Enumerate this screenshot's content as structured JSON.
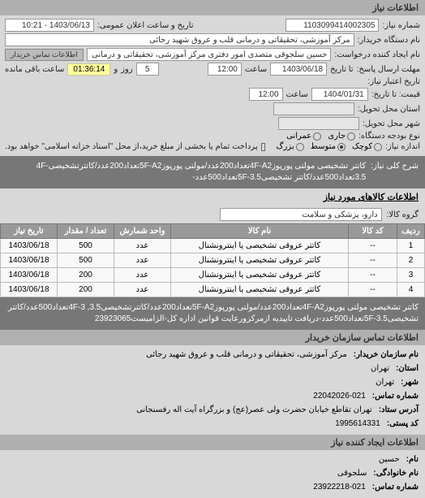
{
  "sections": {
    "info_header": "اطلاعات نیاز",
    "goods_header": "اطلاعات کالاهای مورد نیاز",
    "buyer_header": "اطلاعات تماس سازمان خریدار",
    "creator_header": "اطلاعات ایجاد کننده نیاز"
  },
  "labels": {
    "request_number": "شماره نیاز:",
    "announce_datetime": "تاریخ و ساعت اعلان عمومی:",
    "buyer_name": "نام دستگاه خریدار:",
    "requester_name": "نام ایجاد کننده درخواست:",
    "buyer_contact_btn": "اطلاعات تماس خریدار",
    "response_deadline": "مهلت ارسال پاسخ:",
    "until_date": "تا تاریخ",
    "hour": "ساعت",
    "valid_days": "روز",
    "and": "و",
    "time_remaining": "ساعت باقی مانده",
    "validity_date": "تاریخ اعتبار نیاز:",
    "price_until": "قیمت: تا تاریخ:",
    "delivery_province": "استان محل تحویل:",
    "delivery_city": "شهر محل تحویل:",
    "budget_type": "نوع بودجه دستگاه:",
    "budget_current": "جاری",
    "budget_capital": "عمرانی",
    "need_size": "اندازه نیاز:",
    "size_small": "کوچک",
    "size_medium": "متوسط",
    "size_large": "بزرگ",
    "partial_payment": "پرداخت تمام یا بخشی از مبلغ خرید،از محل \"اسناد خزانه اسلامی\" خواهد بود.",
    "general_title": "شرح کلی نیاز:",
    "goods_group": "گروه کالا:",
    "row": "ردیف",
    "goods_code": "کد کالا",
    "goods_name": "نام کالا",
    "unit": "واحد شمارش",
    "qty": "تعداد / مقدار",
    "need_date": "تاریخ نیاز",
    "org_name": "نام سازمان خریدار:",
    "province": "استان:",
    "city": "شهر:",
    "phone": "شماره تماس:",
    "address": "آدرس ستاد:",
    "postal": "کد پستی:",
    "name_fld": "نام:",
    "family_fld": "نام خانوادگی:"
  },
  "values": {
    "request_number": "1103099414002305",
    "announce_datetime": "1403/06/13 - 10:21",
    "buyer_name": "مرکز آموزشی، تحقیقاتی و درمانی قلب و عروق شهید رجائی",
    "requester_name": "حسین سلجوقی متصدی امور دفتری مرکز آموزشی، تحقیقاتی و درمانی قلب و ع",
    "response_date": "1403/06/18",
    "response_hour": "12:00",
    "valid_days": "5",
    "timer": "01:36:14",
    "validity_date": "1404/01/31",
    "validity_hour": "12:00",
    "general_title": "کاتتر تشخیصی مولتی پورپوز4F-A2تعداد200عدد/مولتی پورپوز5F-A2تعداد200عدد/کاتترتشخیصی4F-3.5تعداد500عدد/کاتتر تشخیصی5F-3.5تعداد500عدد-",
    "goods_group": "دارو، پزشکی و سلامت",
    "desc2": "کاتتر تشخیصی مولتی پورپوز4F-A2تعداد200عدد/مولتی پورپوز5F-A2تعداد200عدد/کاتترتشخیصی3.5, 4F-3تعداد500عدد/کاتتر تشخیصی5F-3.5تعداد500عدد-دریافت تاییدیه ازمرکزورعایت قوانین اداره کل-الزامیست23923065",
    "org_name": "مرکز آموزشی، تحقیقاتی و درمانی قلب و عروق شهید رجائی",
    "province": "تهران",
    "city": "تهران",
    "phone": "22042026-021",
    "address": "تهران تقاطع خیابان حضرت ولی عصر(عج) و بزرگراه آیت اله رفسنجانی",
    "postal": "1995614331",
    "first_name": "حسین",
    "family_name": "سلجوقی",
    "contact_phone": "23922218-021"
  },
  "table": {
    "rows": [
      {
        "idx": "1",
        "code": "--",
        "name": "کاتتر عروقی تشخیصی یا اینترونشنال",
        "unit": "عدد",
        "qty": "500",
        "date": "1403/06/18"
      },
      {
        "idx": "2",
        "code": "--",
        "name": "کاتتر عروقی تشخیصی یا اینترونشنال",
        "unit": "عدد",
        "qty": "500",
        "date": "1403/06/18"
      },
      {
        "idx": "3",
        "code": "--",
        "name": "کاتتر عروقی تشخیصی یا اینترونشنال",
        "unit": "عدد",
        "qty": "200",
        "date": "1403/06/18"
      },
      {
        "idx": "4",
        "code": "--",
        "name": "کاتتر عروقی تشخیصی یا اینترونشنال",
        "unit": "عدد",
        "qty": "200",
        "date": "1403/06/18"
      }
    ]
  },
  "styling": {
    "header_bg": "#b0b0b0",
    "body_bg": "#d8d8d8",
    "field_bg": "#ffffff",
    "gray_box_bg": "#777777",
    "gray_box_fg": "#ffffff",
    "th_bg": "#999999",
    "timer_bg": "#fffd9e"
  }
}
